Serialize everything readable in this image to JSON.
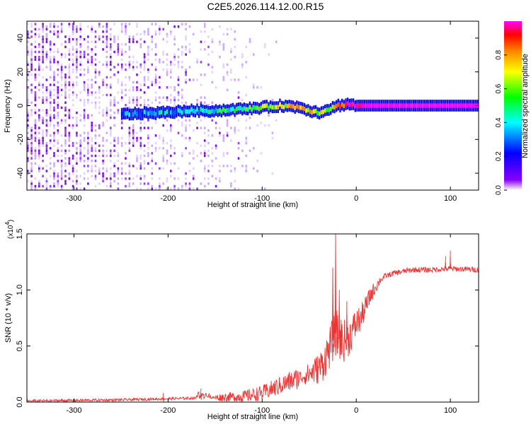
{
  "title": "C2E5.2026.114.12.00.R15",
  "chart_data": [
    {
      "type": "heatmap",
      "name": "spectrogram",
      "xlabel": "Height of straight line (km)",
      "ylabel": "Frequency (Hz)",
      "xlim": [
        -350,
        130
      ],
      "ylim": [
        -50,
        50
      ],
      "x_ticks": [
        -300,
        -200,
        -100,
        0,
        100
      ],
      "x_tick_labels": [
        "-300",
        "-200",
        "-100",
        "0",
        "100"
      ],
      "y_ticks": [
        -40,
        -20,
        0,
        20,
        40
      ],
      "y_tick_labels": [
        "-40",
        "-20",
        "0",
        "20",
        "40"
      ],
      "colorbar": {
        "label": "Normalized spectral amplitude",
        "range": [
          0,
          1
        ],
        "ticks": [
          0,
          0.2,
          0.4,
          0.6,
          0.8
        ],
        "tick_labels": [
          "0.0",
          "0.2",
          "0.4",
          "0.6",
          "0.8"
        ],
        "colors": [
          "#ffffff",
          "#8800ff",
          "#0000ff",
          "#00ffff",
          "#00ff00",
          "#ffff00",
          "#ff8800",
          "#ff0000",
          "#ff00ff"
        ]
      },
      "signal_track": {
        "description_x": [
          -250,
          -200,
          -180,
          -150,
          -120,
          -100,
          -80,
          -60,
          -50,
          -40,
          -30,
          -25,
          -20,
          -10,
          0,
          10,
          130
        ],
        "frequency_hz": [
          -5,
          -4,
          -3,
          -3,
          -2,
          -1,
          0,
          -1,
          -3,
          -4,
          -2,
          -1,
          0,
          1,
          0,
          0,
          0
        ],
        "amplitude": [
          0.3,
          0.35,
          0.4,
          0.45,
          0.5,
          0.6,
          0.7,
          0.75,
          0.7,
          0.65,
          0.6,
          0.7,
          0.8,
          0.9,
          0.95,
          1.0,
          1.0
        ]
      },
      "noise_extent_x": [
        -350,
        -80
      ]
    },
    {
      "type": "line",
      "name": "snr",
      "xlabel": "Height of straight line (km)",
      "ylabel": "SNR (10 * v/v)",
      "y_multiplier": "(x10",
      "y_multiplier_exp": "4",
      "xlim": [
        -350,
        130
      ],
      "ylim": [
        0,
        1.5
      ],
      "x_ticks": [
        -300,
        -200,
        -100,
        0,
        100
      ],
      "x_tick_labels": [
        "-300",
        "-200",
        "-100",
        "0",
        "100"
      ],
      "y_ticks": [
        0,
        0.5,
        1.0,
        1.5
      ],
      "y_tick_labels": [
        "0.0",
        "0.5",
        "1.0",
        "1.5"
      ],
      "color": "#ee3333",
      "envelope": {
        "x": [
          -350,
          -250,
          -200,
          -150,
          -120,
          -100,
          -80,
          -60,
          -50,
          -40,
          -35,
          -30,
          -25,
          -22,
          -20,
          -15,
          -10,
          -5,
          0,
          5,
          10,
          15,
          20,
          25,
          30,
          40,
          60,
          80,
          100,
          130
        ],
        "y": [
          0.01,
          0.02,
          0.03,
          0.04,
          0.05,
          0.08,
          0.15,
          0.22,
          0.25,
          0.3,
          0.35,
          0.45,
          0.55,
          0.62,
          0.6,
          0.55,
          0.55,
          0.62,
          0.7,
          0.75,
          0.85,
          0.95,
          1.02,
          1.08,
          1.12,
          1.15,
          1.18,
          1.18,
          1.19,
          1.18
        ]
      },
      "spikes": [
        {
          "x": -22,
          "y": 1.5
        },
        {
          "x": -25,
          "y": 1.2
        },
        {
          "x": -18,
          "y": 1.0
        },
        {
          "x": -10,
          "y": 0.9
        },
        {
          "x": -165,
          "y": 0.12
        },
        {
          "x": -205,
          "y": 0.08
        },
        {
          "x": 95,
          "y": 1.3
        },
        {
          "x": 100,
          "y": 1.35
        }
      ]
    }
  ]
}
